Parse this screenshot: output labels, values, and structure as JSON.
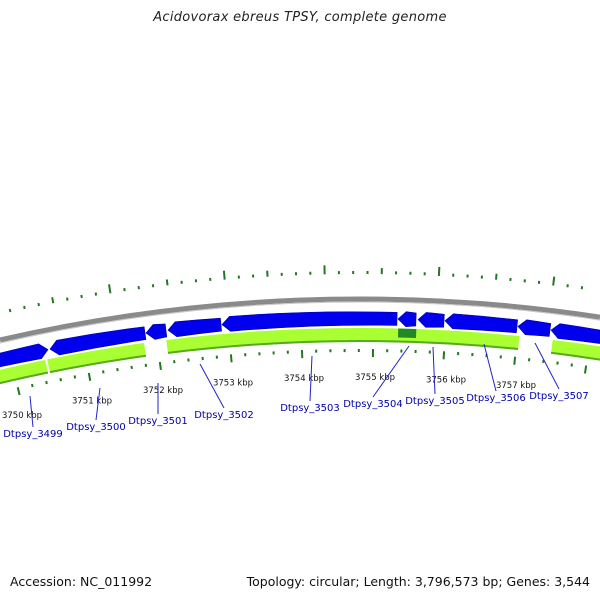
{
  "title": "Acidovorax ebreus TPSY, complete genome",
  "footer": {
    "accession": "Accession: NC_011992",
    "topology": "Topology: circular; Length: 3,796,573 bp; Genes: 3,544"
  },
  "colors": {
    "gene_forward": "#0000ee",
    "gene_feature_band": "#aaff33",
    "feature_dark": "#228822",
    "backbone": "#8a8a8a",
    "gc_ticks": "#227722",
    "label_text": "#0000aa",
    "leader_line": "#2222cc"
  },
  "scale": {
    "unit": "kbp",
    "ticks": [
      {
        "value": 3750,
        "label": "3750 kbp"
      },
      {
        "value": 3751,
        "label": "3751 kbp"
      },
      {
        "value": 3752,
        "label": "3752 kbp"
      },
      {
        "value": 3753,
        "label": "3753 kbp"
      },
      {
        "value": 3754,
        "label": "3754 kbp"
      },
      {
        "value": 3755,
        "label": "3755 kbp"
      },
      {
        "value": 3756,
        "label": "3756 kbp"
      },
      {
        "value": 3757,
        "label": "3757 kbp"
      }
    ]
  },
  "genes": [
    {
      "label": "Dtpsy_3499"
    },
    {
      "label": "Dtpsy_3500"
    },
    {
      "label": "Dtpsy_3501"
    },
    {
      "label": "Dtpsy_3502"
    },
    {
      "label": "Dtpsy_3503"
    },
    {
      "label": "Dtpsy_3504"
    },
    {
      "label": "Dtpsy_3505"
    },
    {
      "label": "Dtpsy_3506"
    },
    {
      "label": "Dtpsy_3507"
    }
  ]
}
